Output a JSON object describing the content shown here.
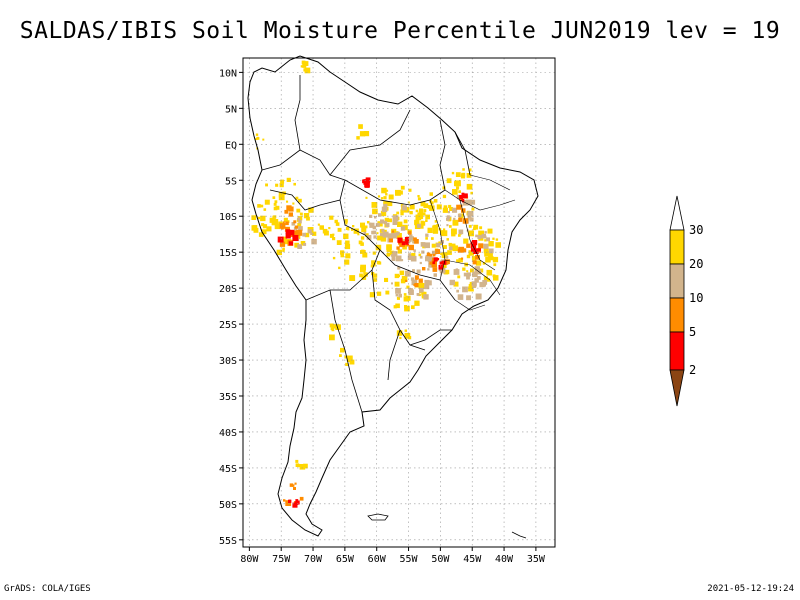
{
  "title": "SALDAS/IBIS Soil Moisture Percentile JUN2019 lev = 19",
  "footer_left": "GrADS: COLA/IGES",
  "footer_right": "2021-05-12-19:24",
  "map": {
    "lat_labels": [
      "10N",
      "5N",
      "EQ",
      "5S",
      "10S",
      "15S",
      "20S",
      "25S",
      "30S",
      "35S",
      "40S",
      "45S",
      "50S",
      "55S"
    ],
    "lon_labels": [
      "80W",
      "75W",
      "70W",
      "65W",
      "60W",
      "55W",
      "50W",
      "45W",
      "40W",
      "35W"
    ],
    "lat_range": [
      -56,
      12
    ],
    "lon_range": [
      -81,
      -32
    ]
  },
  "colorbar": {
    "labels": [
      "30",
      "20",
      "10",
      "5",
      "2"
    ],
    "colors": {
      "above30": "#ffffff",
      "c20_30": "#ffd700",
      "c10_20": "#d2b48c",
      "c5_10": "#ff8c00",
      "c2_5": "#ff0000",
      "below2": "#8b4513"
    }
  }
}
